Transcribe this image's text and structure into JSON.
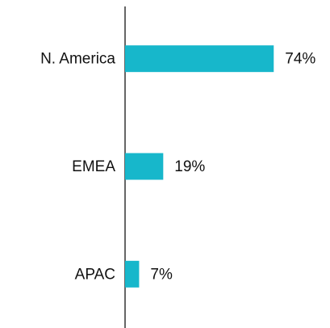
{
  "chart_data": {
    "type": "bar",
    "orientation": "horizontal",
    "categories": [
      "N. America",
      "EMEA",
      "APAC"
    ],
    "values": [
      74,
      19,
      7
    ],
    "value_labels": [
      "74%",
      "19%",
      "7%"
    ],
    "color": "#17b7cb"
  }
}
